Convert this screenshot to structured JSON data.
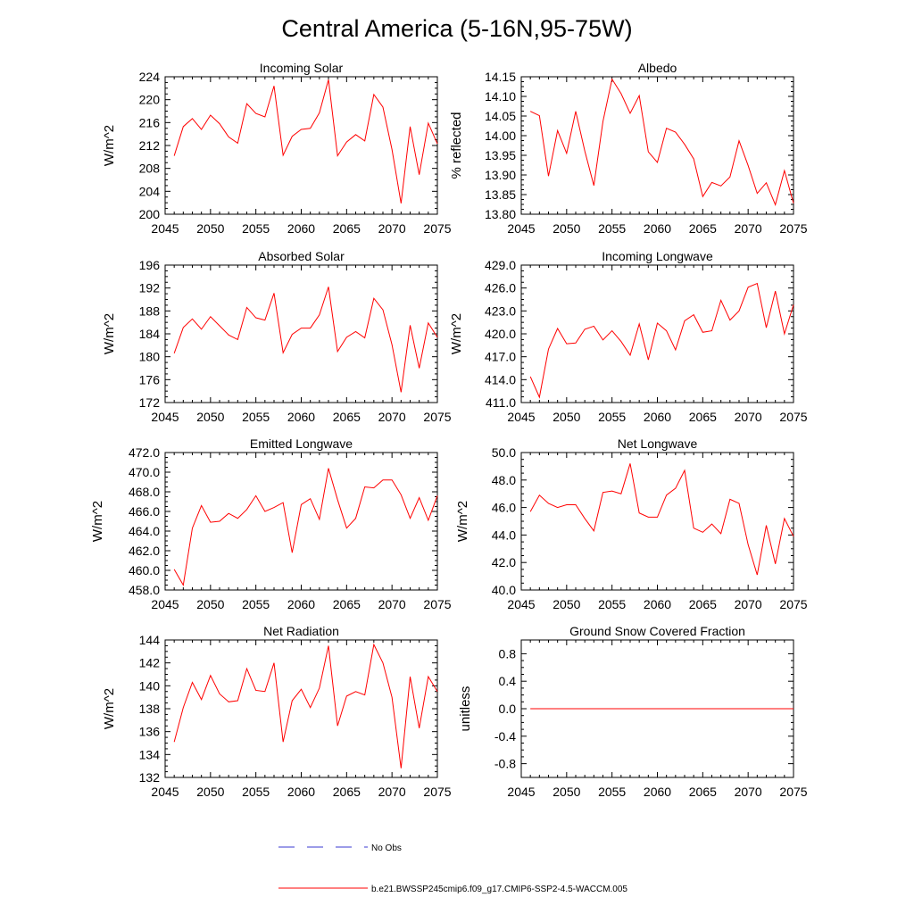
{
  "figure": {
    "title": "Central America (5-16N,95-75W)"
  },
  "legend": {
    "items": [
      {
        "label": "No Obs",
        "color": "#3a3ad0",
        "style": "dashed"
      },
      {
        "label": "b.e21.BWSSP245cmip6.f09_g17.CMIP6-SSP2-4.5-WACCM.005",
        "color": "#ff0000",
        "style": "solid"
      }
    ]
  },
  "chart_data": [
    {
      "type": "line",
      "title": "Incoming Solar",
      "ylabel": "W/m^2",
      "xlim": [
        2045,
        2075
      ],
      "ylim": [
        200,
        224
      ],
      "xticks": [
        "2045",
        "2050",
        "2055",
        "2060",
        "2065",
        "2070",
        "2075"
      ],
      "yticks": [
        "200",
        "204",
        "208",
        "212",
        "216",
        "220",
        "224"
      ],
      "series": [
        {
          "name": "b.e21.BWSSP245cmip6.f09_g17.CMIP6-SSP2-4.5-WACCM.005",
          "color": "#ff0000",
          "x": [
            2046,
            2047,
            2048,
            2049,
            2050,
            2051,
            2052,
            2053,
            2054,
            2055,
            2056,
            2057,
            2058,
            2059,
            2060,
            2061,
            2062,
            2063,
            2064,
            2065,
            2066,
            2067,
            2068,
            2069,
            2070,
            2071,
            2072,
            2073,
            2074,
            2075
          ],
          "values": [
            210.2,
            215.3,
            216.7,
            214.8,
            217.3,
            215.8,
            213.5,
            212.4,
            219.3,
            217.6,
            217.0,
            222.4,
            210.3,
            213.6,
            214.8,
            215.0,
            217.7,
            223.5,
            210.2,
            212.6,
            213.9,
            212.8,
            220.9,
            218.7,
            211.3,
            201.9,
            215.3,
            206.9,
            215.9,
            212.3
          ]
        }
      ]
    },
    {
      "type": "line",
      "title": "Albedo",
      "ylabel": "% reflected",
      "xlim": [
        2045,
        2075
      ],
      "ylim": [
        13.8,
        14.15
      ],
      "xticks": [
        "2045",
        "2050",
        "2055",
        "2060",
        "2065",
        "2070",
        "2075"
      ],
      "yticks": [
        "13.80",
        "13.85",
        "13.90",
        "13.95",
        "14.00",
        "14.05",
        "14.10",
        "14.15"
      ],
      "series": [
        {
          "name": "b.e21.BWSSP245cmip6.f09_g17.CMIP6-SSP2-4.5-WACCM.005",
          "color": "#ff0000",
          "x": [
            2046,
            2047,
            2048,
            2049,
            2050,
            2051,
            2052,
            2053,
            2054,
            2055,
            2056,
            2057,
            2058,
            2059,
            2060,
            2061,
            2062,
            2063,
            2064,
            2065,
            2066,
            2067,
            2068,
            2069,
            2070,
            2071,
            2072,
            2073,
            2074,
            2075
          ],
          "values": [
            14.062,
            14.051,
            13.897,
            14.013,
            13.955,
            14.062,
            13.961,
            13.873,
            14.036,
            14.144,
            14.107,
            14.057,
            14.102,
            13.959,
            13.932,
            14.019,
            14.009,
            13.978,
            13.941,
            13.845,
            13.881,
            13.872,
            13.895,
            13.987,
            13.924,
            13.853,
            13.88,
            13.824,
            13.911,
            13.828
          ]
        }
      ]
    },
    {
      "type": "line",
      "title": "Absorbed Solar",
      "ylabel": "W/m^2",
      "xlim": [
        2045,
        2075
      ],
      "ylim": [
        172,
        196
      ],
      "xticks": [
        "2045",
        "2050",
        "2055",
        "2060",
        "2065",
        "2070",
        "2075"
      ],
      "yticks": [
        "172",
        "176",
        "180",
        "184",
        "188",
        "192",
        "196"
      ],
      "series": [
        {
          "name": "b.e21.BWSSP245cmip6.f09_g17.CMIP6-SSP2-4.5-WACCM.005",
          "color": "#ff0000",
          "x": [
            2046,
            2047,
            2048,
            2049,
            2050,
            2051,
            2052,
            2053,
            2054,
            2055,
            2056,
            2057,
            2058,
            2059,
            2060,
            2061,
            2062,
            2063,
            2064,
            2065,
            2066,
            2067,
            2068,
            2069,
            2070,
            2071,
            2072,
            2073,
            2074,
            2075
          ],
          "values": [
            180.6,
            185.1,
            186.6,
            184.8,
            187.0,
            185.4,
            183.8,
            183.0,
            188.6,
            186.8,
            186.4,
            191.1,
            180.7,
            183.9,
            185.0,
            185.0,
            187.3,
            192.2,
            180.9,
            183.4,
            184.4,
            183.3,
            190.2,
            188.2,
            182.1,
            173.8,
            185.5,
            178.0,
            185.9,
            183.4
          ]
        }
      ]
    },
    {
      "type": "line",
      "title": "Incoming Longwave",
      "ylabel": "W/m^2",
      "xlim": [
        2045,
        2075
      ],
      "ylim": [
        411.0,
        429.0
      ],
      "xticks": [
        "2045",
        "2050",
        "2055",
        "2060",
        "2065",
        "2070",
        "2075"
      ],
      "yticks": [
        "411.0",
        "414.0",
        "417.0",
        "420.0",
        "423.0",
        "426.0",
        "429.0"
      ],
      "series": [
        {
          "name": "b.e21.BWSSP245cmip6.f09_g17.CMIP6-SSP2-4.5-WACCM.005",
          "color": "#ff0000",
          "x": [
            2046,
            2047,
            2048,
            2049,
            2050,
            2051,
            2052,
            2053,
            2054,
            2055,
            2056,
            2057,
            2058,
            2059,
            2060,
            2061,
            2062,
            2063,
            2064,
            2065,
            2066,
            2067,
            2068,
            2069,
            2070,
            2071,
            2072,
            2073,
            2074,
            2075
          ],
          "values": [
            414.4,
            411.7,
            418.0,
            420.7,
            418.7,
            418.8,
            420.6,
            421.0,
            419.2,
            420.4,
            419.0,
            417.2,
            421.3,
            416.6,
            421.4,
            420.4,
            417.9,
            421.7,
            422.5,
            420.2,
            420.4,
            424.4,
            421.8,
            423.0,
            426.1,
            426.6,
            420.8,
            425.6,
            420.0,
            423.8
          ]
        }
      ]
    },
    {
      "type": "line",
      "title": "Emitted Longwave",
      "ylabel": "W/m^2",
      "xlim": [
        2045,
        2075
      ],
      "ylim": [
        458.0,
        472.0
      ],
      "xticks": [
        "2045",
        "2050",
        "2055",
        "2060",
        "2065",
        "2070",
        "2075"
      ],
      "yticks": [
        "458.0",
        "460.0",
        "462.0",
        "464.0",
        "466.0",
        "468.0",
        "470.0",
        "472.0"
      ],
      "series": [
        {
          "name": "b.e21.BWSSP245cmip6.f09_g17.CMIP6-SSP2-4.5-WACCM.005",
          "color": "#ff0000",
          "x": [
            2046,
            2047,
            2048,
            2049,
            2050,
            2051,
            2052,
            2053,
            2054,
            2055,
            2056,
            2057,
            2058,
            2059,
            2060,
            2061,
            2062,
            2063,
            2064,
            2065,
            2066,
            2067,
            2068,
            2069,
            2070,
            2071,
            2072,
            2073,
            2074,
            2075
          ],
          "values": [
            460.1,
            458.5,
            464.3,
            466.6,
            464.9,
            465.0,
            465.8,
            465.3,
            466.2,
            467.6,
            466.0,
            466.4,
            466.9,
            461.8,
            466.7,
            467.3,
            465.2,
            470.4,
            467.2,
            464.3,
            465.3,
            468.5,
            468.4,
            469.2,
            469.2,
            467.7,
            465.3,
            467.4,
            465.1,
            467.6
          ]
        }
      ]
    },
    {
      "type": "line",
      "title": "Net Longwave",
      "ylabel": "W/m^2",
      "xlim": [
        2045,
        2075
      ],
      "ylim": [
        40.0,
        50.0
      ],
      "xticks": [
        "2045",
        "2050",
        "2055",
        "2060",
        "2065",
        "2070",
        "2075"
      ],
      "yticks": [
        "40.0",
        "42.0",
        "44.0",
        "46.0",
        "48.0",
        "50.0"
      ],
      "series": [
        {
          "name": "b.e21.BWSSP245cmip6.f09_g17.CMIP6-SSP2-4.5-WACCM.005",
          "color": "#ff0000",
          "x": [
            2046,
            2047,
            2048,
            2049,
            2050,
            2051,
            2052,
            2053,
            2054,
            2055,
            2056,
            2057,
            2058,
            2059,
            2060,
            2061,
            2062,
            2063,
            2064,
            2065,
            2066,
            2067,
            2068,
            2069,
            2070,
            2071,
            2072,
            2073,
            2074,
            2075
          ],
          "values": [
            45.7,
            46.9,
            46.3,
            46.0,
            46.2,
            46.2,
            45.2,
            44.3,
            47.1,
            47.2,
            47.0,
            49.2,
            45.6,
            45.3,
            45.3,
            46.9,
            47.4,
            48.7,
            44.5,
            44.2,
            44.8,
            44.1,
            46.6,
            46.3,
            43.3,
            41.1,
            44.7,
            41.9,
            45.2,
            43.9
          ]
        }
      ]
    },
    {
      "type": "line",
      "title": "Net Radiation",
      "ylabel": "W/m^2",
      "xlim": [
        2045,
        2075
      ],
      "ylim": [
        132,
        144
      ],
      "xticks": [
        "2045",
        "2050",
        "2055",
        "2060",
        "2065",
        "2070",
        "2075"
      ],
      "yticks": [
        "132",
        "134",
        "136",
        "138",
        "140",
        "142",
        "144"
      ],
      "series": [
        {
          "name": "b.e21.BWSSP245cmip6.f09_g17.CMIP6-SSP2-4.5-WACCM.005",
          "color": "#ff0000",
          "x": [
            2046,
            2047,
            2048,
            2049,
            2050,
            2051,
            2052,
            2053,
            2054,
            2055,
            2056,
            2057,
            2058,
            2059,
            2060,
            2061,
            2062,
            2063,
            2064,
            2065,
            2066,
            2067,
            2068,
            2069,
            2070,
            2071,
            2072,
            2073,
            2074,
            2075
          ],
          "values": [
            135.1,
            138.1,
            140.3,
            138.8,
            140.9,
            139.3,
            138.6,
            138.7,
            141.5,
            139.6,
            139.5,
            142.0,
            135.1,
            138.7,
            139.7,
            138.1,
            139.8,
            143.5,
            136.5,
            139.1,
            139.5,
            139.2,
            143.6,
            142.0,
            139.0,
            132.8,
            140.8,
            136.3,
            140.8,
            139.5
          ]
        }
      ]
    },
    {
      "type": "line",
      "title": "Ground Snow Covered Fraction",
      "ylabel": "unitless",
      "xlim": [
        2045,
        2075
      ],
      "ylim": [
        -1.0,
        1.0
      ],
      "ytick_values": [
        -0.8,
        -0.4,
        0.0,
        0.4,
        0.8
      ],
      "xticks": [
        "2045",
        "2050",
        "2055",
        "2060",
        "2065",
        "2070",
        "2075"
      ],
      "yticks": [
        "-0.8",
        "-0.4",
        "0.0",
        "0.4",
        "0.8"
      ],
      "series": [
        {
          "name": "b.e21.BWSSP245cmip6.f09_g17.CMIP6-SSP2-4.5-WACCM.005",
          "color": "#ff0000",
          "x": [
            2046,
            2047,
            2048,
            2049,
            2050,
            2051,
            2052,
            2053,
            2054,
            2055,
            2056,
            2057,
            2058,
            2059,
            2060,
            2061,
            2062,
            2063,
            2064,
            2065,
            2066,
            2067,
            2068,
            2069,
            2070,
            2071,
            2072,
            2073,
            2074,
            2075
          ],
          "values": [
            0,
            0,
            0,
            0,
            0,
            0,
            0,
            0,
            0,
            0,
            0,
            0,
            0,
            0,
            0,
            0,
            0,
            0,
            0,
            0,
            0,
            0,
            0,
            0,
            0,
            0,
            0,
            0,
            0,
            0
          ]
        }
      ]
    }
  ]
}
